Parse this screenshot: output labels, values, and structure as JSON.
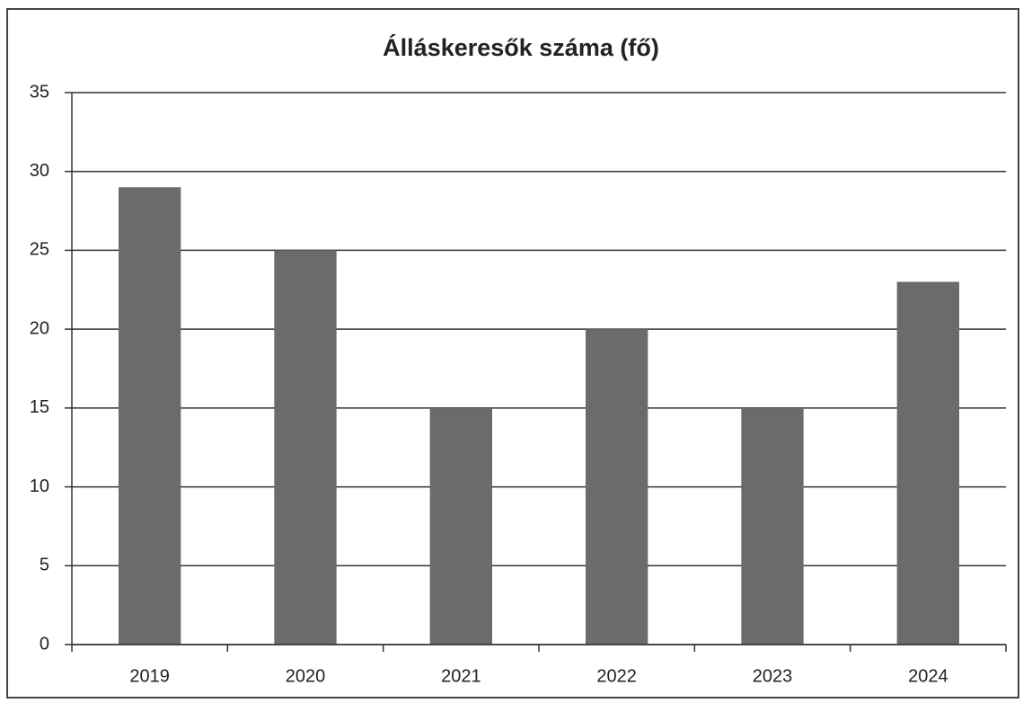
{
  "chart_data": {
    "type": "bar",
    "title": "Álláskeresők száma (fő)",
    "categories": [
      "2019",
      "2020",
      "2021",
      "2022",
      "2023",
      "2024"
    ],
    "values": [
      29,
      25,
      15,
      20,
      15,
      23
    ],
    "color": "#6b6b6b",
    "ylim": [
      0,
      35
    ],
    "yticks": [
      0,
      5,
      10,
      15,
      20,
      25,
      30,
      35
    ],
    "grid": true
  }
}
